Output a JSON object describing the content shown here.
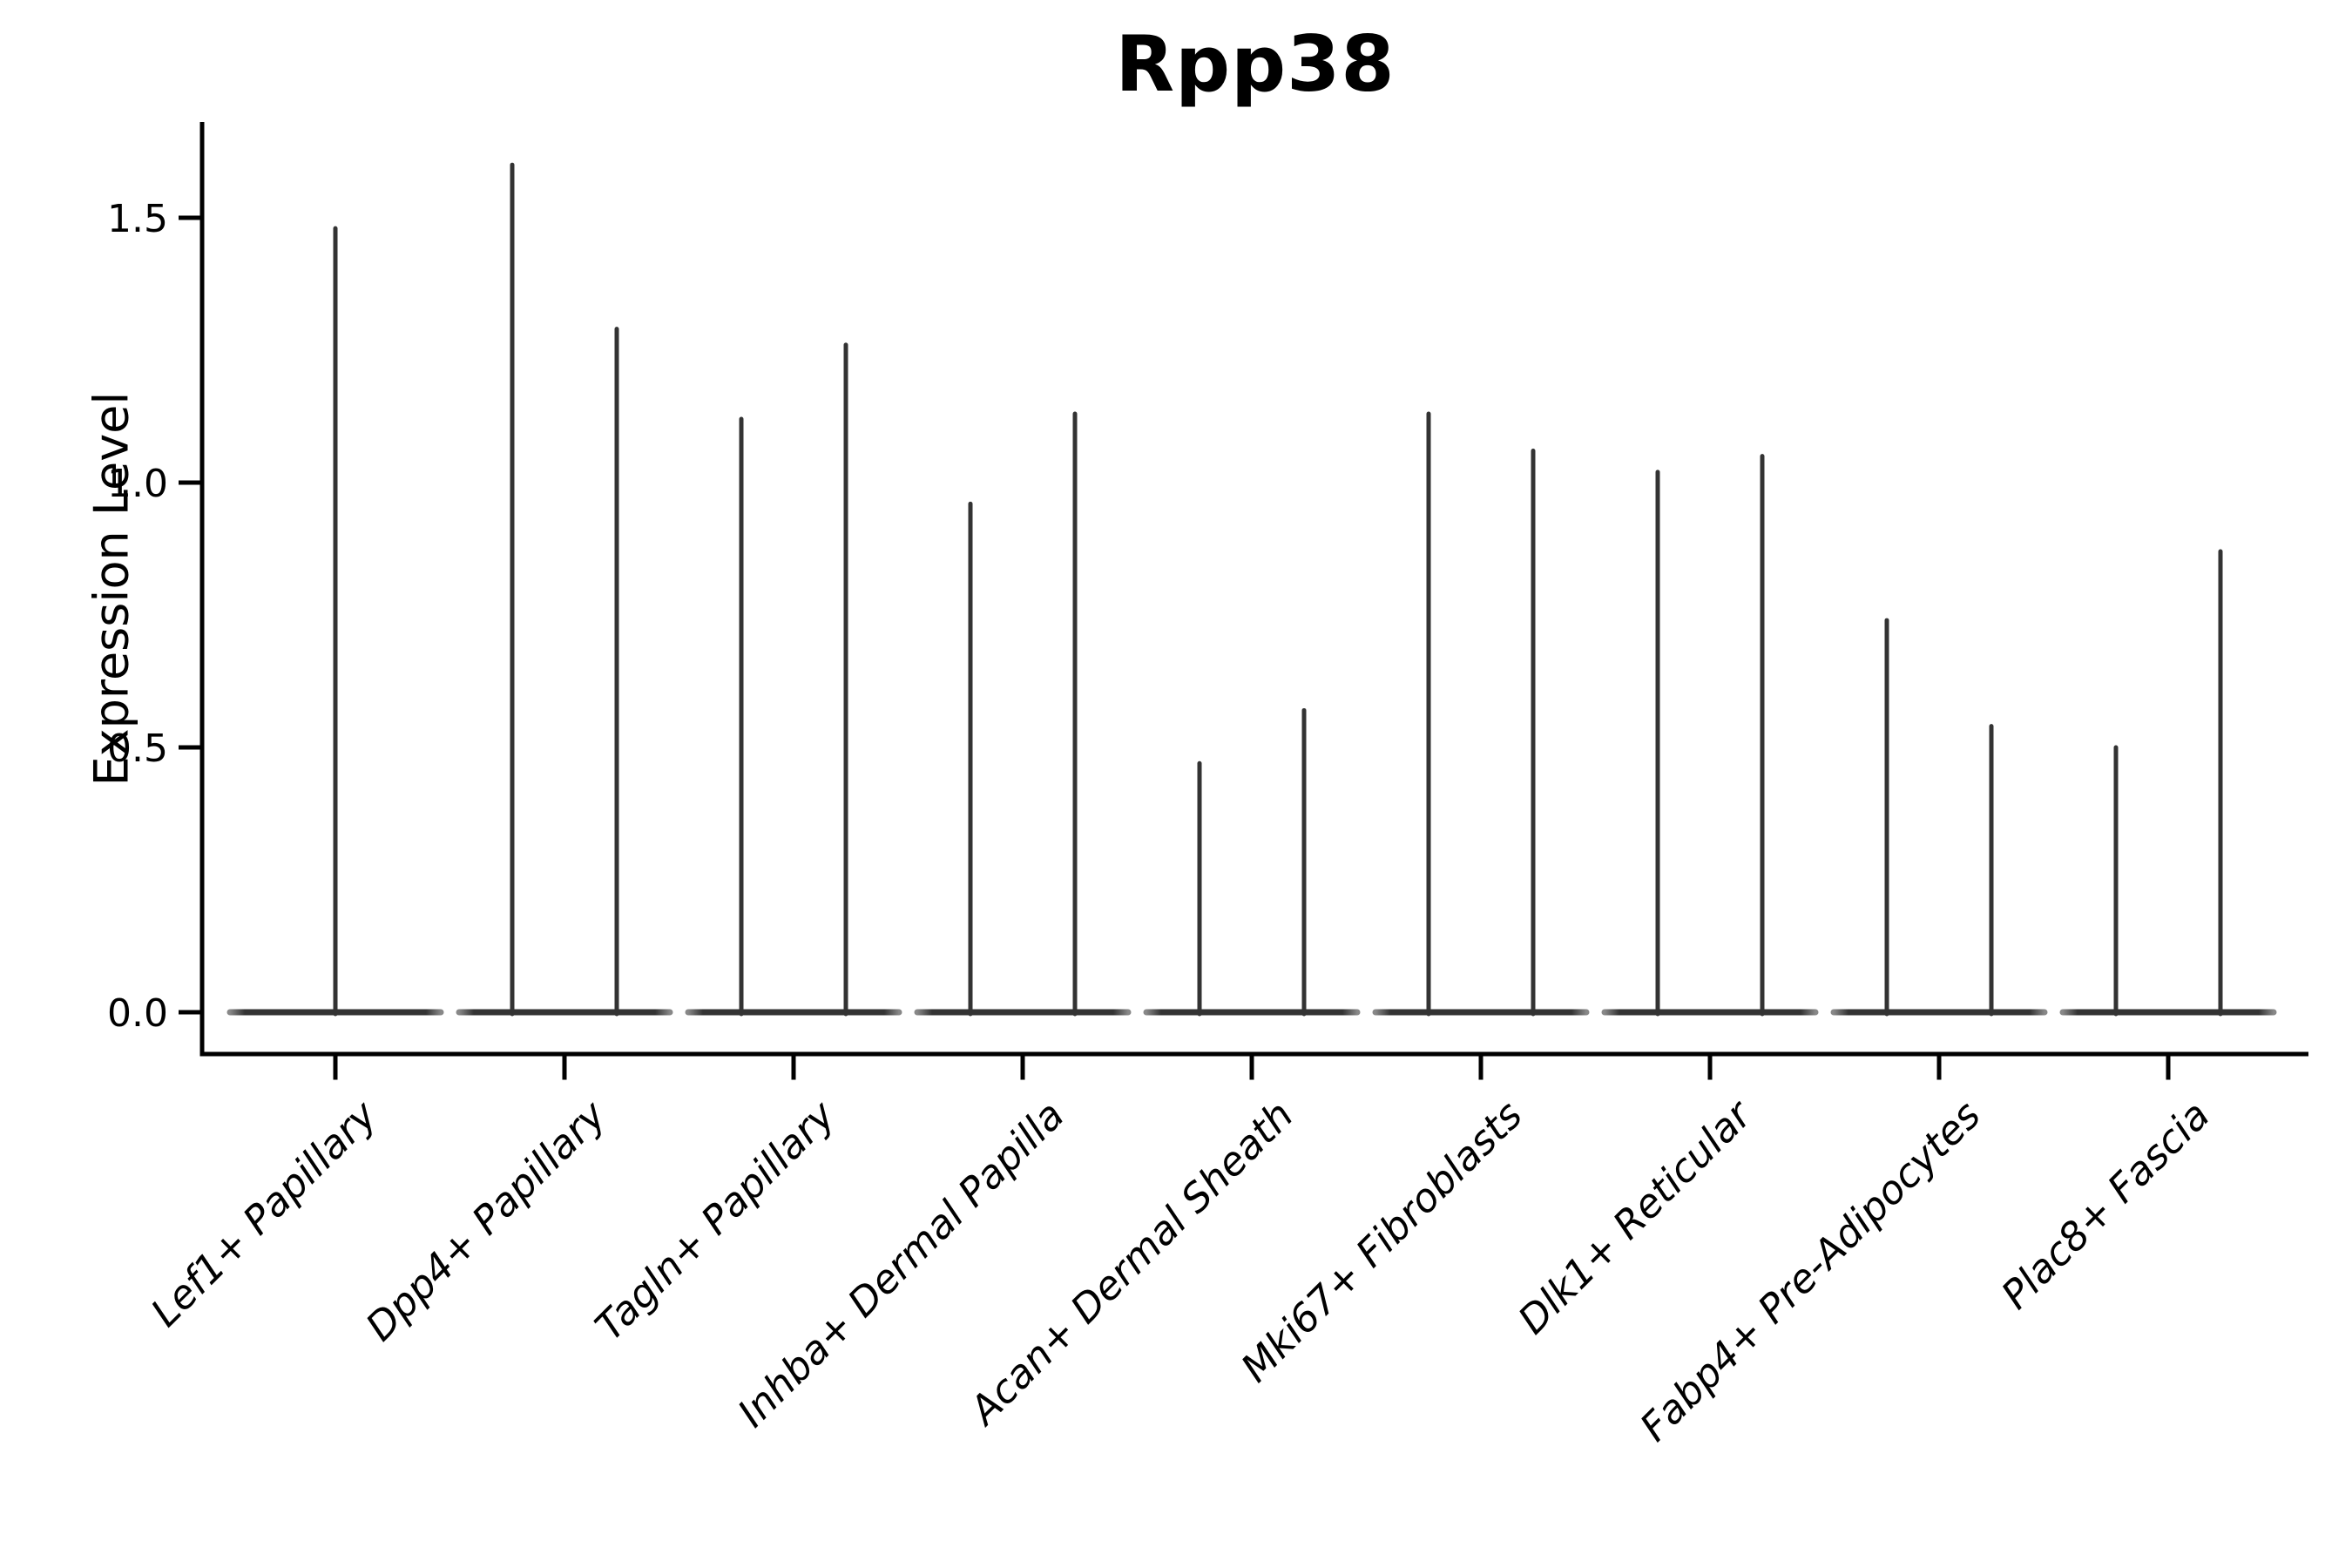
{
  "chart_data": {
    "type": "violin",
    "title": "Rpp38",
    "ylabel": "Expression Level",
    "xlabel": "",
    "ylim": [
      -0.08,
      1.68
    ],
    "yticks": [
      0.0,
      0.5,
      1.0,
      1.5
    ],
    "ytick_labels": [
      "0.0",
      "0.5",
      "1.0",
      "1.5"
    ],
    "grid": false,
    "legend_position": "none",
    "categories": [
      "Lef1+ Papillary",
      "Dpp4+ Papillary",
      "Tagln+ Papillary",
      "Inhba+ Dermal Papilla",
      "Acan+ Dermal Sheath",
      "Mki67+ Fibroblasts",
      "Dlk1+ Reticular",
      "Fabp4+ Pre-Adipocytes",
      "Plac8+ Fascia"
    ],
    "violins": [
      {
        "category": "Lef1+ Papillary",
        "spikes": [
          {
            "dx": 0,
            "value": 1.48
          }
        ]
      },
      {
        "category": "Dpp4+ Papillary",
        "spikes": [
          {
            "dx": -60,
            "value": 1.6
          },
          {
            "dx": 60,
            "value": 1.29
          }
        ]
      },
      {
        "category": "Tagln+ Papillary",
        "spikes": [
          {
            "dx": -60,
            "value": 1.12
          },
          {
            "dx": 60,
            "value": 1.26
          }
        ]
      },
      {
        "category": "Inhba+ Dermal Papilla",
        "spikes": [
          {
            "dx": -60,
            "value": 0.96
          },
          {
            "dx": 60,
            "value": 1.13
          }
        ]
      },
      {
        "category": "Acan+ Dermal Sheath",
        "spikes": [
          {
            "dx": -60,
            "value": 0.47
          },
          {
            "dx": 60,
            "value": 0.57
          }
        ]
      },
      {
        "category": "Mki67+ Fibroblasts",
        "spikes": [
          {
            "dx": -60,
            "value": 1.13
          },
          {
            "dx": 60,
            "value": 1.06
          }
        ]
      },
      {
        "category": "Dlk1+ Reticular",
        "spikes": [
          {
            "dx": -60,
            "value": 1.02
          },
          {
            "dx": 60,
            "value": 1.05
          }
        ]
      },
      {
        "category": "Fabp4+ Pre-Adipocytes",
        "spikes": [
          {
            "dx": -60,
            "value": 0.74
          },
          {
            "dx": 60,
            "value": 0.54
          }
        ]
      },
      {
        "category": "Plac8+ Fascia",
        "spikes": [
          {
            "dx": -60,
            "value": 0.5
          },
          {
            "dx": 60,
            "value": 0.87
          }
        ]
      }
    ],
    "baseline_value": 0.0,
    "note": "each violin is flat (all mass at 0) with a thin density spike rising to the max expression value"
  },
  "style": {
    "background": "#ffffff",
    "violin_color": "#333333",
    "violin_taper_color": "#888888",
    "axis_color": "#000000",
    "text_color": "#000000"
  }
}
